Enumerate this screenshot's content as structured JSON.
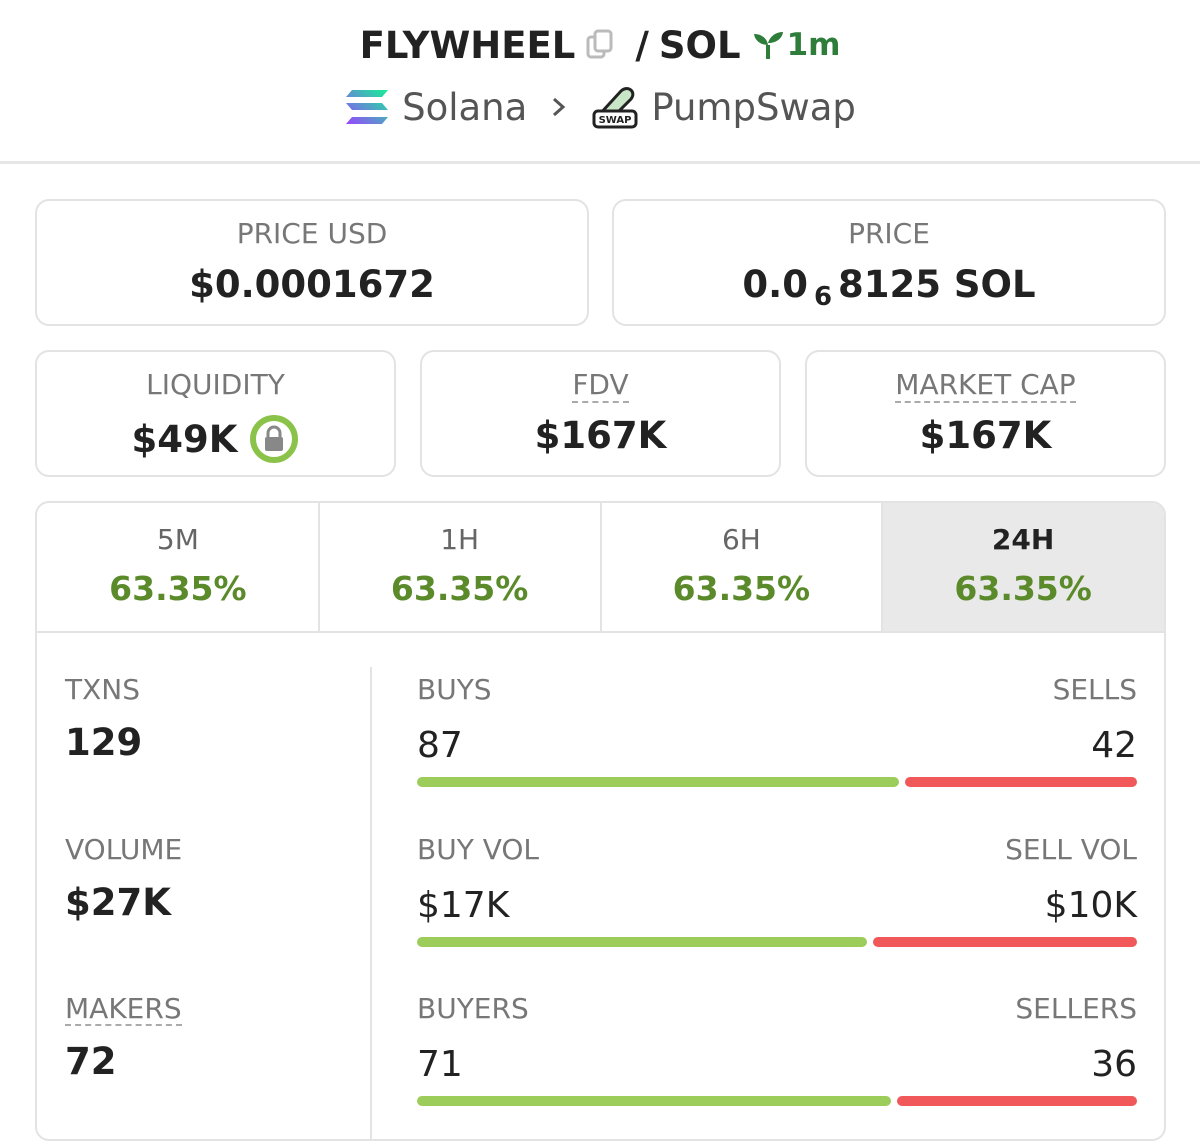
{
  "header": {
    "base": "FLYWHEEL",
    "separator": "/",
    "quote": "SOL",
    "age": "1m",
    "chain": "Solana",
    "dex": "PumpSwap"
  },
  "price_cards": [
    {
      "label": "PRICE USD",
      "value": "$0.0001672"
    },
    {
      "label": "PRICE",
      "value_prefix": "0.0",
      "value_subscript": "6",
      "value_suffix": "8125 SOL"
    }
  ],
  "stat_cards": [
    {
      "label": "LIQUIDITY",
      "value": "$49K"
    },
    {
      "label": "FDV",
      "value": "$167K"
    },
    {
      "label": "MARKET CAP",
      "value": "$167K"
    }
  ],
  "tabs": [
    {
      "label": "5M",
      "change": "63.35%"
    },
    {
      "label": "1H",
      "change": "63.35%"
    },
    {
      "label": "6H",
      "change": "63.35%"
    },
    {
      "label": "24H",
      "change": "63.35%"
    }
  ],
  "active_tab": 3,
  "stats": [
    {
      "label": "TXNS",
      "value": 129
    },
    {
      "label": "VOLUME",
      "value": "$27K"
    },
    {
      "label": "MAKERS",
      "value": 72
    }
  ],
  "splits": [
    {
      "left_label": "BUYS",
      "left": 87,
      "right_label": "SELLS",
      "right": 42
    },
    {
      "left_label": "BUY VOL",
      "left": "$17K",
      "right_label": "SELL VOL",
      "right": "$10K"
    },
    {
      "left_label": "BUYERS",
      "left": 71,
      "right_label": "SELLERS",
      "right": 36
    }
  ]
}
